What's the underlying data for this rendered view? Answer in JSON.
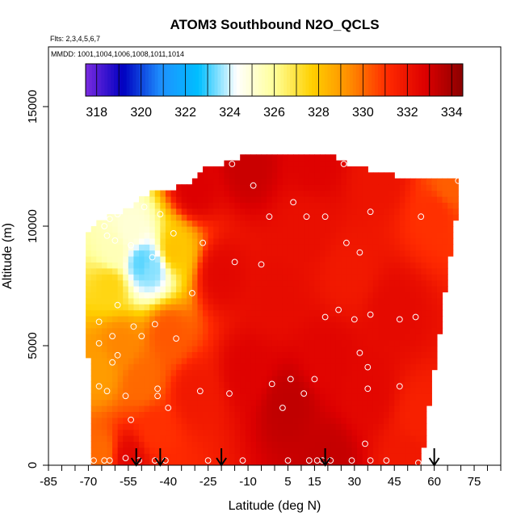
{
  "chart_data": {
    "type": "heatmap",
    "title": "ATOM3 Southbound N2O_QCLS",
    "flights_note": "Flts: 2,3,4,5,6,7",
    "dates_note": "MMDD: 1001,1004,1006,1008,1011,1014",
    "xlabel": "Latitude (deg N)",
    "ylabel": "Altitude (m)",
    "xlim": [
      -85,
      85
    ],
    "ylim": [
      0,
      17500
    ],
    "x_ticks": [
      -85,
      -70,
      -55,
      -40,
      -25,
      -10,
      5,
      15,
      30,
      45,
      60,
      75
    ],
    "y_ticks": [
      0,
      5000,
      10000,
      15000
    ],
    "colorbar": {
      "ticks": [
        318,
        320,
        322,
        324,
        326,
        328,
        330,
        332,
        334
      ],
      "range": [
        317.5,
        334.5
      ],
      "colors": [
        "#7a2be0",
        "#0000c0",
        "#1e90ff",
        "#00bfff",
        "#ffffff",
        "#ffff99",
        "#ffd000",
        "#ff8c00",
        "#ff2a00",
        "#dd0000",
        "#8b0000"
      ]
    },
    "fill_outline": {
      "lat": [
        -72,
        -69,
        -66,
        -62,
        -58,
        -54,
        -50,
        -46,
        -42,
        -38,
        -34,
        -30,
        -26,
        -22,
        -18,
        -14,
        -10,
        -6,
        -2,
        2,
        6,
        10,
        14,
        18,
        22,
        26,
        30,
        34,
        38,
        42,
        46,
        50,
        54,
        58,
        62,
        66,
        70
      ],
      "top_altitude": [
        9200,
        10000,
        10200,
        10400,
        10500,
        10800,
        11200,
        11400,
        11500,
        11600,
        11700,
        12000,
        12400,
        12500,
        12700,
        12800,
        13000,
        13000,
        13000,
        13000,
        13000,
        13000,
        13000,
        13000,
        12900,
        12700,
        12500,
        12400,
        12300,
        12200,
        12100,
        12000,
        12000,
        12000,
        11900,
        11900,
        11900
      ],
      "bottom_lat_range": [
        -68,
        55
      ]
    },
    "field_centers": [
      {
        "lat": -60,
        "alt": 9000,
        "value": 325.5
      },
      {
        "lat": -50,
        "alt": 8500,
        "value": 323.2
      },
      {
        "lat": -46,
        "alt": 8300,
        "value": 323.5
      },
      {
        "lat": -54,
        "alt": 9800,
        "value": 325.0
      },
      {
        "lat": -62,
        "alt": 7500,
        "value": 327.5
      },
      {
        "lat": -66,
        "alt": 4000,
        "value": 329.0
      },
      {
        "lat": -58,
        "alt": 5000,
        "value": 329.5
      },
      {
        "lat": -50,
        "alt": 3500,
        "value": 330.0
      },
      {
        "lat": -45,
        "alt": 1500,
        "value": 331.0
      },
      {
        "lat": -40,
        "alt": 5500,
        "value": 330.3
      },
      {
        "lat": -38,
        "alt": 9000,
        "value": 328.0
      },
      {
        "lat": -30,
        "alt": 3000,
        "value": 331.8
      },
      {
        "lat": -20,
        "alt": 8000,
        "value": 332.5
      },
      {
        "lat": -10,
        "alt": 4000,
        "value": 332.7
      },
      {
        "lat": 0,
        "alt": 7000,
        "value": 332.3
      },
      {
        "lat": 5,
        "alt": 2500,
        "value": 333.4
      },
      {
        "lat": 12,
        "alt": 10000,
        "value": 332.2
      },
      {
        "lat": 20,
        "alt": 4500,
        "value": 332.6
      },
      {
        "lat": 28,
        "alt": 8000,
        "value": 331.8
      },
      {
        "lat": 35,
        "alt": 3000,
        "value": 332.5
      },
      {
        "lat": 45,
        "alt": 6500,
        "value": 332.4
      },
      {
        "lat": 55,
        "alt": 2000,
        "value": 331.5
      },
      {
        "lat": 60,
        "alt": 10500,
        "value": 331.0
      },
      {
        "lat": 66,
        "alt": 11800,
        "value": 330.2
      },
      {
        "lat": -30,
        "alt": 11600,
        "value": 332.8
      },
      {
        "lat": -10,
        "alt": 12500,
        "value": 333.2
      },
      {
        "lat": 15,
        "alt": 12700,
        "value": 332.7
      },
      {
        "lat": 40,
        "alt": 12100,
        "value": 332.0
      },
      {
        "lat": -65,
        "alt": 500,
        "value": 330.0
      },
      {
        "lat": -55,
        "alt": 300,
        "value": 332.5
      },
      {
        "lat": 20,
        "alt": 300,
        "value": 333.3
      },
      {
        "lat": 50,
        "alt": 300,
        "value": 331.8
      }
    ],
    "sample_points": [
      {
        "lat": -59,
        "alt": 10500
      },
      {
        "lat": -64,
        "alt": 10000
      },
      {
        "lat": -62,
        "alt": 10300
      },
      {
        "lat": -63,
        "alt": 9600
      },
      {
        "lat": -60,
        "alt": 9400
      },
      {
        "lat": -54,
        "alt": 9200
      },
      {
        "lat": -49,
        "alt": 10800
      },
      {
        "lat": -43,
        "alt": 10500
      },
      {
        "lat": -38,
        "alt": 9700
      },
      {
        "lat": -46,
        "alt": 8700
      },
      {
        "lat": -27,
        "alt": 9300
      },
      {
        "lat": -16,
        "alt": 12600
      },
      {
        "lat": -8,
        "alt": 11700
      },
      {
        "lat": -2,
        "alt": 10400
      },
      {
        "lat": 7,
        "alt": 11000
      },
      {
        "lat": 12,
        "alt": 10400
      },
      {
        "lat": 19,
        "alt": 10400
      },
      {
        "lat": 26,
        "alt": 12600
      },
      {
        "lat": 36,
        "alt": 10600
      },
      {
        "lat": 55,
        "alt": 10400
      },
      {
        "lat": 69,
        "alt": 11900
      },
      {
        "lat": -15,
        "alt": 8500
      },
      {
        "lat": -5,
        "alt": 8400
      },
      {
        "lat": 27,
        "alt": 9300
      },
      {
        "lat": 32,
        "alt": 8900
      },
      {
        "lat": -31,
        "alt": 7200
      },
      {
        "lat": -59,
        "alt": 6700
      },
      {
        "lat": -66,
        "alt": 6000
      },
      {
        "lat": -53,
        "alt": 5800
      },
      {
        "lat": -45,
        "alt": 5900
      },
      {
        "lat": -37,
        "alt": 5300
      },
      {
        "lat": -61,
        "alt": 5400
      },
      {
        "lat": -66,
        "alt": 5100
      },
      {
        "lat": -50,
        "alt": 5400
      },
      {
        "lat": -59,
        "alt": 4600
      },
      {
        "lat": -61,
        "alt": 4300
      },
      {
        "lat": 19,
        "alt": 6200
      },
      {
        "lat": 24,
        "alt": 6500
      },
      {
        "lat": 30,
        "alt": 6100
      },
      {
        "lat": 36,
        "alt": 6300
      },
      {
        "lat": 47,
        "alt": 6100
      },
      {
        "lat": 53,
        "alt": 6200
      },
      {
        "lat": 32,
        "alt": 4700
      },
      {
        "lat": 35,
        "alt": 4100
      },
      {
        "lat": 6,
        "alt": 3600
      },
      {
        "lat": 15,
        "alt": 3600
      },
      {
        "lat": -1,
        "alt": 3400
      },
      {
        "lat": -66,
        "alt": 3300
      },
      {
        "lat": -63,
        "alt": 3100
      },
      {
        "lat": -44,
        "alt": 3200
      },
      {
        "lat": -44,
        "alt": 2900
      },
      {
        "lat": -56,
        "alt": 2900
      },
      {
        "lat": -28,
        "alt": 3100
      },
      {
        "lat": -17,
        "alt": 3000
      },
      {
        "lat": 11,
        "alt": 3000
      },
      {
        "lat": 35,
        "alt": 3200
      },
      {
        "lat": 47,
        "alt": 3300
      },
      {
        "lat": -40,
        "alt": 2400
      },
      {
        "lat": 3,
        "alt": 2400
      },
      {
        "lat": -54,
        "alt": 1900
      },
      {
        "lat": 34,
        "alt": 900
      },
      {
        "lat": -68,
        "alt": 200
      },
      {
        "lat": -64,
        "alt": 200
      },
      {
        "lat": -62,
        "alt": 200
      },
      {
        "lat": -56,
        "alt": 300
      },
      {
        "lat": -51,
        "alt": 200
      },
      {
        "lat": -45,
        "alt": 200
      },
      {
        "lat": -41,
        "alt": 200
      },
      {
        "lat": -25,
        "alt": 200
      },
      {
        "lat": -12,
        "alt": 200
      },
      {
        "lat": 5,
        "alt": 200
      },
      {
        "lat": 13,
        "alt": 200
      },
      {
        "lat": 16,
        "alt": 200
      },
      {
        "lat": 18,
        "alt": 200
      },
      {
        "lat": 21,
        "alt": 200
      },
      {
        "lat": 29,
        "alt": 200
      },
      {
        "lat": 36,
        "alt": 200
      },
      {
        "lat": 42,
        "alt": 200
      },
      {
        "lat": 54,
        "alt": 100
      }
    ],
    "arrows_lat": [
      -52,
      -43,
      -20,
      19,
      60
    ]
  }
}
